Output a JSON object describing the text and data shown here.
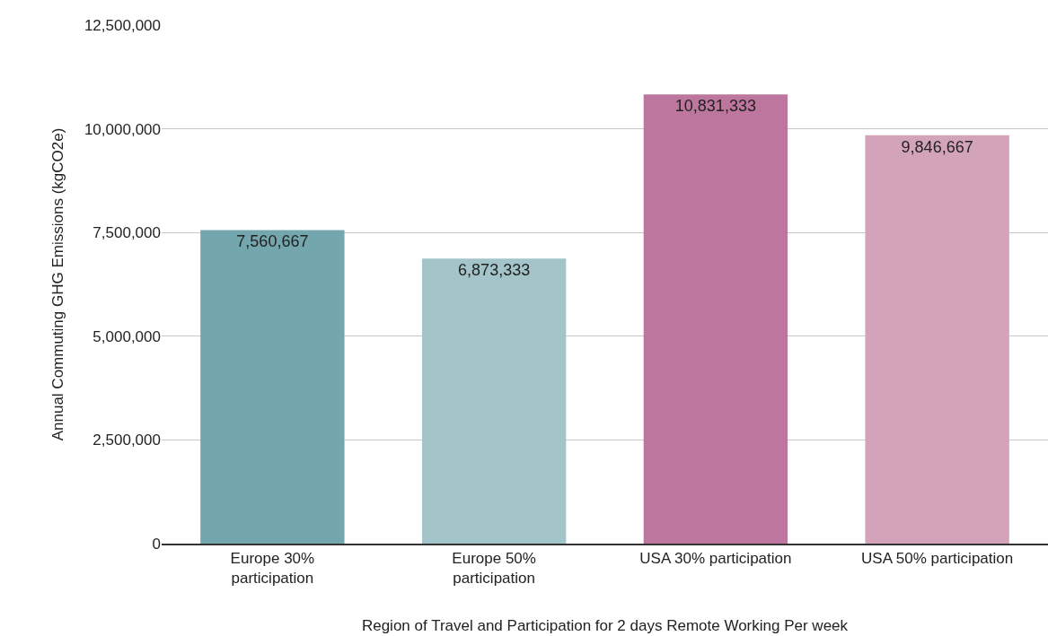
{
  "chart_data": {
    "type": "bar",
    "xlabel": "Region of Travel and Participation for 2 days Remote Working Per week",
    "ylabel": "Annual Commuting GHG Emissions (kgCO2e)",
    "categories": [
      "Europe 30% participation",
      "Europe 50% participation",
      "USA 30% participation",
      "USA 50% participation"
    ],
    "values": [
      7560667,
      6873333,
      10831333,
      9846667
    ],
    "value_labels": [
      "7,560,667",
      "6,873,333",
      "10,831,333",
      "9,846,667"
    ],
    "colors": [
      "#74a6ad",
      "#a3c4c8",
      "#bd769d",
      "#d3a4b9"
    ],
    "ylim": [
      0,
      12500000
    ],
    "yticks": [
      {
        "value": 0,
        "label": "0"
      },
      {
        "value": 2500000,
        "label": "2,500,000"
      },
      {
        "value": 5000000,
        "label": "5,000,000"
      },
      {
        "value": 7500000,
        "label": "7,500,000"
      },
      {
        "value": 10000000,
        "label": "10,000,000"
      },
      {
        "value": 12500000,
        "label": "12,500,000"
      }
    ],
    "grid": "y"
  }
}
